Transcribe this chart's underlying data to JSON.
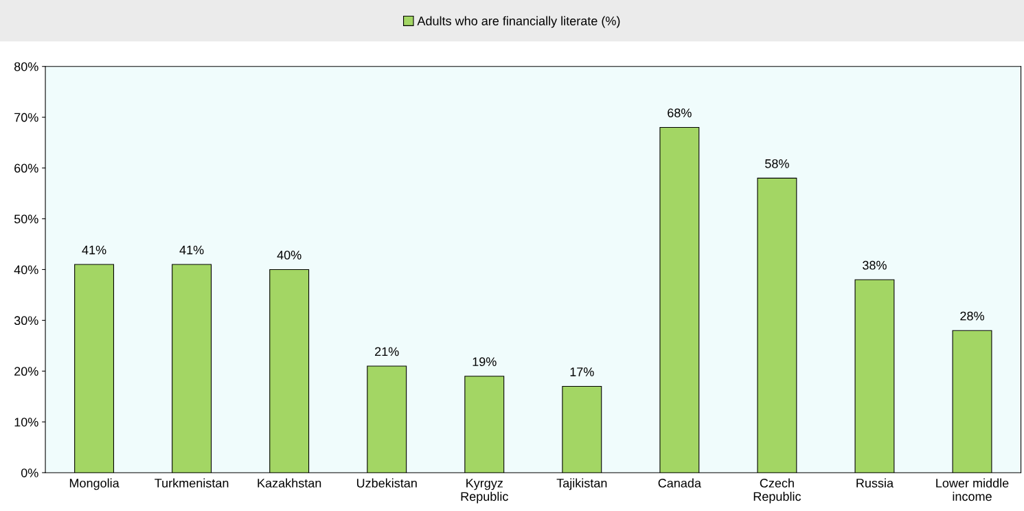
{
  "chart_data": {
    "type": "bar",
    "categories": [
      "Mongolia",
      "Turkmenistan",
      "Kazakhstan",
      "Uzbekistan",
      "Kyrgyz Republic",
      "Tajikistan",
      "Canada",
      "Czech Republic",
      "Russia",
      "Lower middle income"
    ],
    "series": [
      {
        "name": "Adults who are financially literate (%)",
        "color": "#a3d664",
        "values": [
          41,
          41,
          40,
          21,
          19,
          17,
          68,
          58,
          38,
          28
        ],
        "value_labels": [
          "41%",
          "41%",
          "40%",
          "21%",
          "19%",
          "17%",
          "68%",
          "58%",
          "38%",
          "28%"
        ]
      }
    ],
    "ylim": [
      0,
      80
    ],
    "yticks": [
      {
        "value": 0,
        "label": "0%"
      },
      {
        "value": 10,
        "label": "10%"
      },
      {
        "value": 20,
        "label": "20%"
      },
      {
        "value": 30,
        "label": "30%"
      },
      {
        "value": 40,
        "label": "40%"
      },
      {
        "value": 50,
        "label": "50%"
      },
      {
        "value": 60,
        "label": "60%"
      },
      {
        "value": 70,
        "label": "70%"
      },
      {
        "value": 80,
        "label": "80%"
      }
    ],
    "grid": false,
    "legend": "top"
  }
}
